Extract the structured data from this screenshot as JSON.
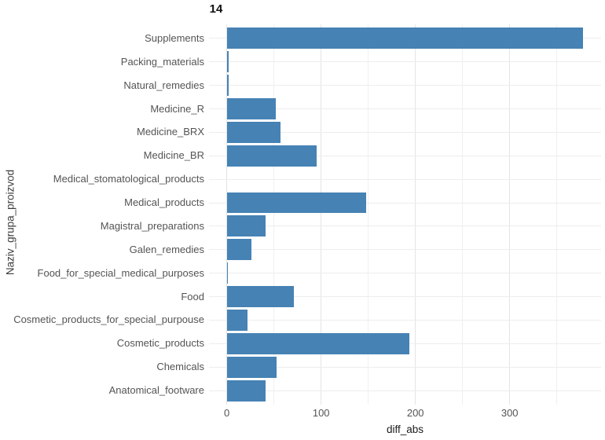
{
  "chart_data": {
    "type": "bar",
    "orientation": "horizontal",
    "title": "14",
    "xlabel": "diff_abs",
    "ylabel": "Naziv_grupa_proizvod",
    "categories": [
      "Supplements",
      "Packing_materials",
      "Natural_remedies",
      "Medicine_R",
      "Medicine_BRX",
      "Medicine_BR",
      "Medical_stomatological_products",
      "Medical_products",
      "Magistral_preparations",
      "Galen_remedies",
      "Food_for_special_medical_purposes",
      "Food",
      "Cosmetic_products_for_special_purpouse",
      "Cosmetic_products",
      "Chemicals",
      "Anatomical_footware"
    ],
    "values": [
      378,
      2,
      2,
      52,
      57,
      95,
      0,
      148,
      41,
      26,
      1,
      71,
      22,
      194,
      53,
      41
    ],
    "x_ticks": [
      0,
      100,
      200,
      300
    ],
    "x_minor_ticks": [
      50,
      150,
      250,
      350
    ],
    "xlim": [
      0,
      397
    ],
    "bar_color": "#4682B4",
    "grid_major_color": "#e4e4e4",
    "grid_minor_color": "#f0f0f0",
    "grid": "on",
    "legend": "none"
  }
}
